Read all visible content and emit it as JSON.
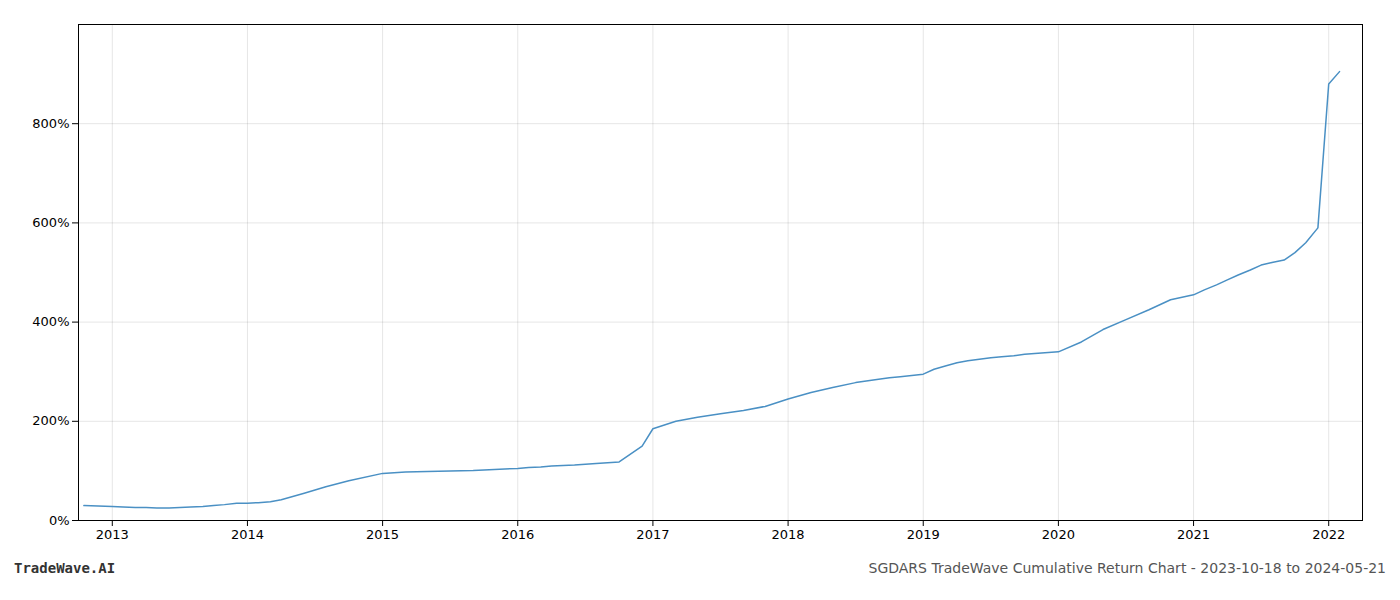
{
  "chart_data": {
    "type": "line",
    "title": "SGDARS TradeWave Cumulative Return Chart - 2023-10-18 to 2024-05-21",
    "annotations": [
      "TradeWave.AI"
    ],
    "x": [
      2012.79,
      2013.0,
      2013.08,
      2013.17,
      2013.25,
      2013.33,
      2013.42,
      2013.5,
      2013.58,
      2013.67,
      2013.75,
      2013.83,
      2013.92,
      2014.0,
      2014.08,
      2014.17,
      2014.25,
      2014.42,
      2014.58,
      2014.75,
      2015.0,
      2015.17,
      2015.33,
      2015.5,
      2015.67,
      2015.75,
      2016.0,
      2016.08,
      2016.17,
      2016.25,
      2016.42,
      2016.58,
      2016.75,
      2016.92,
      2017.0,
      2017.17,
      2017.33,
      2017.5,
      2017.67,
      2017.83,
      2018.0,
      2018.17,
      2018.33,
      2018.5,
      2018.67,
      2018.75,
      2018.83,
      2019.0,
      2019.08,
      2019.17,
      2019.25,
      2019.33,
      2019.5,
      2019.58,
      2019.67,
      2019.75,
      2020.0,
      2020.17,
      2020.33,
      2020.5,
      2020.67,
      2020.83,
      2021.0,
      2021.08,
      2021.17,
      2021.25,
      2021.33,
      2021.42,
      2021.5,
      2021.58,
      2021.67,
      2021.75,
      2021.83,
      2021.92,
      2022.0,
      2022.08
    ],
    "values": [
      30,
      28,
      27,
      26,
      26,
      25,
      25,
      26,
      27,
      28,
      30,
      32,
      35,
      35,
      36,
      38,
      42,
      55,
      68,
      80,
      95,
      98,
      99,
      100,
      101,
      102,
      105,
      107,
      108,
      110,
      112,
      115,
      118,
      150,
      185,
      200,
      208,
      215,
      222,
      230,
      245,
      258,
      268,
      278,
      285,
      288,
      290,
      295,
      305,
      312,
      318,
      322,
      328,
      330,
      332,
      335,
      340,
      360,
      385,
      405,
      425,
      445,
      455,
      465,
      475,
      485,
      495,
      505,
      515,
      520,
      525,
      540,
      560,
      590,
      880,
      905
    ],
    "color": "#4a90c4",
    "xlim": [
      2012.75,
      2022.25
    ],
    "xticks": [
      2013,
      2014,
      2015,
      2016,
      2017,
      2018,
      2019,
      2020,
      2021,
      2022
    ],
    "ylim": [
      0,
      1000
    ],
    "yticks": [
      {
        "value": 0,
        "label": "0%"
      },
      {
        "value": 200,
        "label": "200%"
      },
      {
        "value": 400,
        "label": "400%"
      },
      {
        "value": 600,
        "label": "600%"
      },
      {
        "value": 800,
        "label": "800%"
      }
    ],
    "grid": true
  }
}
